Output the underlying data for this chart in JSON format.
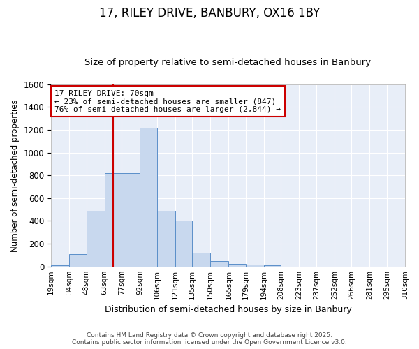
{
  "title": "17, RILEY DRIVE, BANBURY, OX16 1BY",
  "subtitle": "Size of property relative to semi-detached houses in Banbury",
  "xlabel": "Distribution of semi-detached houses by size in Banbury",
  "ylabel": "Number of semi-detached properties",
  "bin_edges": [
    19,
    34,
    48,
    63,
    77,
    92,
    106,
    121,
    135,
    150,
    165,
    179,
    194,
    208,
    223,
    237,
    252,
    266,
    281,
    295,
    310
  ],
  "bar_heights": [
    10,
    110,
    490,
    820,
    820,
    1220,
    490,
    400,
    120,
    50,
    25,
    15,
    10,
    0,
    0,
    0,
    0,
    0,
    0,
    0
  ],
  "bar_color": "#c8d8ee",
  "bar_edge_color": "#5b8fc9",
  "fig_background_color": "#ffffff",
  "plot_background_color": "#e8eef8",
  "grid_color": "#ffffff",
  "ylim": [
    0,
    1600
  ],
  "xlim_left": 19,
  "xlim_right": 310,
  "property_size": 70,
  "red_line_color": "#cc0000",
  "annotation_text": "17 RILEY DRIVE: 70sqm\n← 23% of semi-detached houses are smaller (847)\n76% of semi-detached houses are larger (2,844) →",
  "annotation_box_color": "#cc0000",
  "footer_line1": "Contains HM Land Registry data © Crown copyright and database right 2025.",
  "footer_line2": "Contains public sector information licensed under the Open Government Licence v3.0.",
  "title_fontsize": 12,
  "subtitle_fontsize": 9.5,
  "tick_label_fontsize": 7.5,
  "ylabel_fontsize": 8.5,
  "xlabel_fontsize": 9,
  "annotation_fontsize": 8,
  "footer_fontsize": 6.5,
  "yticks": [
    0,
    200,
    400,
    600,
    800,
    1000,
    1200,
    1400,
    1600
  ]
}
